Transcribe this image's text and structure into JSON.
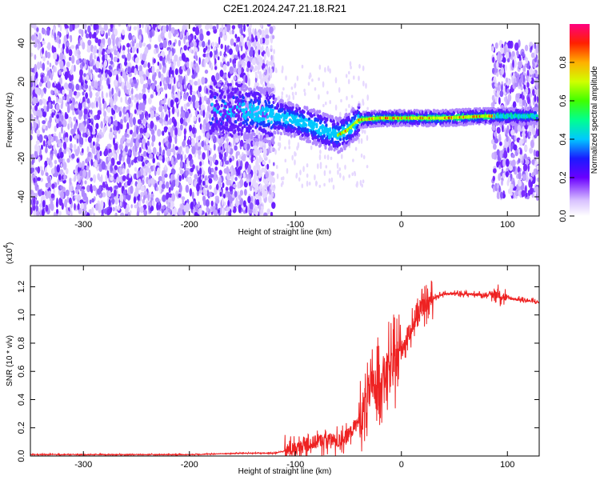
{
  "title": "C2E1.2024.247.21.18.R21",
  "chart_data": [
    {
      "type": "heatmap",
      "xlabel": "Height of straight line (km)",
      "ylabel": "Frequency (Hz)",
      "xlim": [
        -350,
        130
      ],
      "ylim": [
        -50,
        50
      ],
      "xticks": [
        -300,
        -200,
        -100,
        0,
        100
      ],
      "yticks": [
        -40,
        -20,
        0,
        20,
        40
      ],
      "colorbar": {
        "label": "Normalized spectral amplitude",
        "range": [
          0,
          1
        ],
        "ticks": [
          "0.0",
          "0.2",
          "0.4",
          "0.6",
          "0.8"
        ]
      },
      "ridge": {
        "x": [
          -150,
          -120,
          -100,
          -80,
          -60,
          -50,
          -40,
          -20,
          0,
          40,
          80,
          90,
          130
        ],
        "frequency": [
          5,
          2,
          0,
          -4,
          -8,
          -5,
          0,
          1,
          1,
          1,
          2,
          2,
          2
        ]
      }
    },
    {
      "type": "line",
      "xlabel": "Height of straight line (km)",
      "ylabel": "SNR (10 * v/v)",
      "multiplier": "(x10",
      "multiplier_exp": "4",
      "xlim": [
        -350,
        130
      ],
      "ylim": [
        0,
        1.35
      ],
      "xticks": [
        -300,
        -200,
        -100,
        0,
        100
      ],
      "yticks": [
        "0.0",
        "0.2",
        "0.4",
        "0.6",
        "0.8",
        "1.0",
        "1.2"
      ],
      "color": "#ee2222",
      "series": [
        {
          "x": [
            -350,
            -300,
            -250,
            -200,
            -150,
            -120,
            -100,
            -90,
            -80,
            -70,
            -60,
            -50,
            -40,
            -30,
            -20,
            -10,
            0,
            10,
            20,
            30,
            40,
            60,
            80,
            90,
            100,
            110,
            130
          ],
          "y": [
            0.01,
            0.01,
            0.01,
            0.01,
            0.02,
            0.02,
            0.05,
            0.08,
            0.1,
            0.12,
            0.1,
            0.15,
            0.25,
            0.45,
            0.55,
            0.62,
            0.75,
            0.92,
            1.05,
            1.12,
            1.15,
            1.15,
            1.14,
            1.15,
            1.12,
            1.11,
            1.09
          ]
        }
      ]
    }
  ]
}
